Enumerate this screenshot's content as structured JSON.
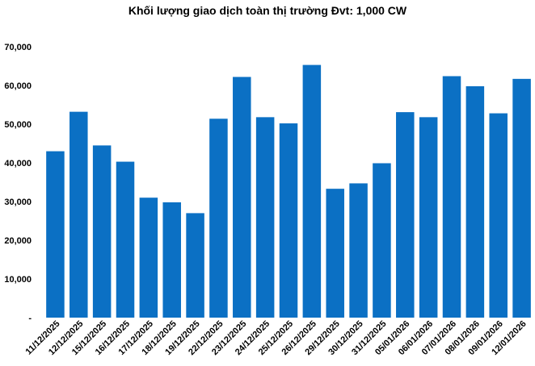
{
  "chart_data": {
    "type": "bar",
    "title": "Khối lượng giao dịch toàn thị trường Đvt: 1,000 CW",
    "xlabel": "",
    "ylabel": "",
    "ylim": [
      0,
      70000
    ],
    "yticks": [
      "-",
      "10,000",
      "20,000",
      "30,000",
      "40,000",
      "50,000",
      "60,000",
      "70,000"
    ],
    "grid": false,
    "bar_color": "#0b70c4",
    "categories": [
      "11/12/2025",
      "12/12/2025",
      "15/12/2025",
      "16/12/2025",
      "17/12/2025",
      "18/12/2025",
      "19/12/2025",
      "22/12/2025",
      "23/12/2025",
      "24/12/2025",
      "25/12/2025",
      "26/12/2025",
      "29/12/2025",
      "30/12/2025",
      "31/12/2025",
      "05/01/2026",
      "06/01/2026",
      "07/01/2026",
      "08/01/2026",
      "09/01/2026",
      "12/01/2026"
    ],
    "values": [
      43000,
      53200,
      44500,
      40300,
      31000,
      29800,
      27000,
      51400,
      62200,
      51800,
      50200,
      65300,
      33300,
      34700,
      39900,
      53100,
      51800,
      62400,
      59800,
      52800,
      61700
    ]
  }
}
